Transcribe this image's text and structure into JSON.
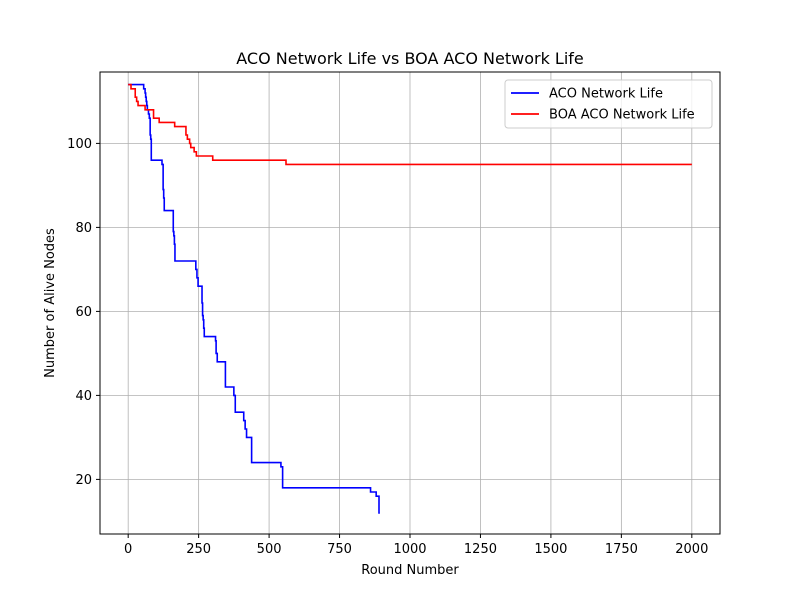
{
  "chart_data": {
    "type": "line",
    "title": "ACO Network Life vs BOA ACO Network Life",
    "xlabel": "Round Number",
    "ylabel": "Number of Alive Nodes",
    "xlim": [
      -100,
      2100
    ],
    "ylim": [
      7,
      117
    ],
    "xticks": [
      0,
      250,
      500,
      750,
      1000,
      1250,
      1500,
      1750,
      2000
    ],
    "yticks": [
      20,
      40,
      60,
      80,
      100
    ],
    "grid": true,
    "legend_position": "upper-right",
    "series": [
      {
        "name": "ACO Network Life",
        "color": "#0000ff",
        "step": true,
        "x": [
          0,
          55,
          60,
          62,
          64,
          66,
          68,
          70,
          72,
          75,
          78,
          80,
          82,
          85,
          120,
          124,
          126,
          128,
          130,
          160,
          162,
          164,
          166,
          170,
          240,
          244,
          248,
          252,
          262,
          264,
          266,
          268,
          270,
          275,
          310,
          312,
          316,
          320,
          345,
          350,
          375,
          380,
          390,
          410,
          415,
          420,
          430,
          438,
          535,
          542,
          548,
          860,
          880,
          890,
          893
        ],
        "y": [
          114,
          113,
          112,
          111,
          110,
          109,
          108,
          108,
          107,
          106,
          102,
          101,
          96,
          96,
          95,
          89,
          87,
          84,
          84,
          79,
          78,
          76,
          72,
          72,
          70,
          68,
          66,
          66,
          62,
          59,
          58,
          56,
          54,
          54,
          53,
          50,
          48,
          48,
          42,
          42,
          40,
          36,
          36,
          34,
          32,
          30,
          30,
          24,
          24,
          23,
          18,
          17,
          16,
          12,
          12
        ]
      },
      {
        "name": "BOA ACO Network Life",
        "color": "#ff0000",
        "step": true,
        "x": [
          0,
          10,
          25,
          30,
          35,
          60,
          90,
          110,
          165,
          205,
          210,
          218,
          222,
          228,
          234,
          242,
          250,
          300,
          560,
          2000
        ],
        "y": [
          114,
          113,
          111,
          110,
          109,
          108,
          106,
          105,
          104,
          102,
          101,
          100,
          99,
          99,
          98,
          97,
          97,
          96,
          95,
          95
        ]
      }
    ]
  }
}
